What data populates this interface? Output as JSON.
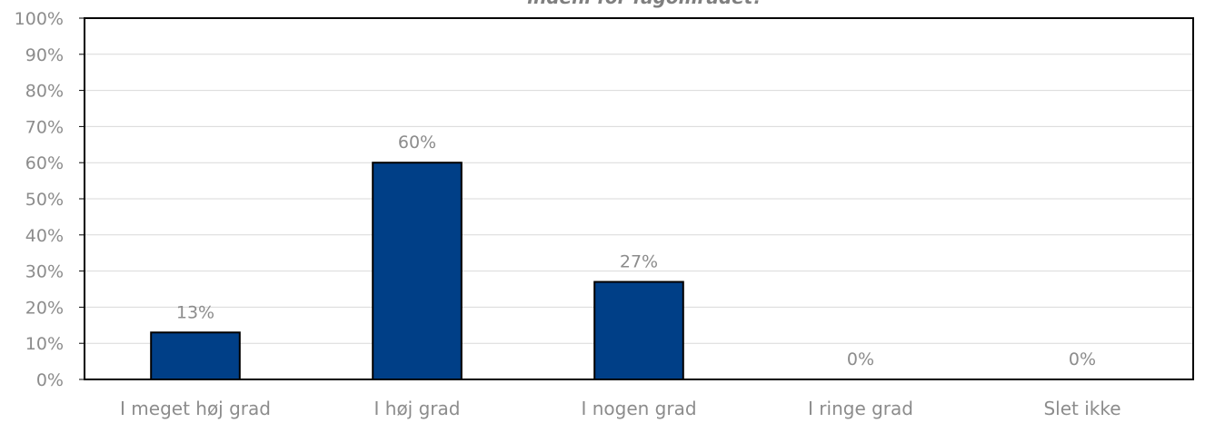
{
  "chart_data": {
    "type": "bar",
    "title": "indeni for fagområdet?",
    "categories": [
      "I meget høj grad",
      "I høj grad",
      "I nogen grad",
      "I ringe grad",
      "Slet ikke"
    ],
    "values": [
      13,
      60,
      27,
      0,
      0
    ],
    "data_labels": [
      "13%",
      "60%",
      "27%",
      "0%",
      "0%"
    ],
    "ylim": [
      0,
      100
    ],
    "yticks": [
      "0%",
      "10%",
      "20%",
      "30%",
      "40%",
      "50%",
      "60%",
      "70%",
      "80%",
      "90%",
      "100%"
    ],
    "grid": true,
    "legend": "none",
    "bar_color": "#003f87"
  }
}
